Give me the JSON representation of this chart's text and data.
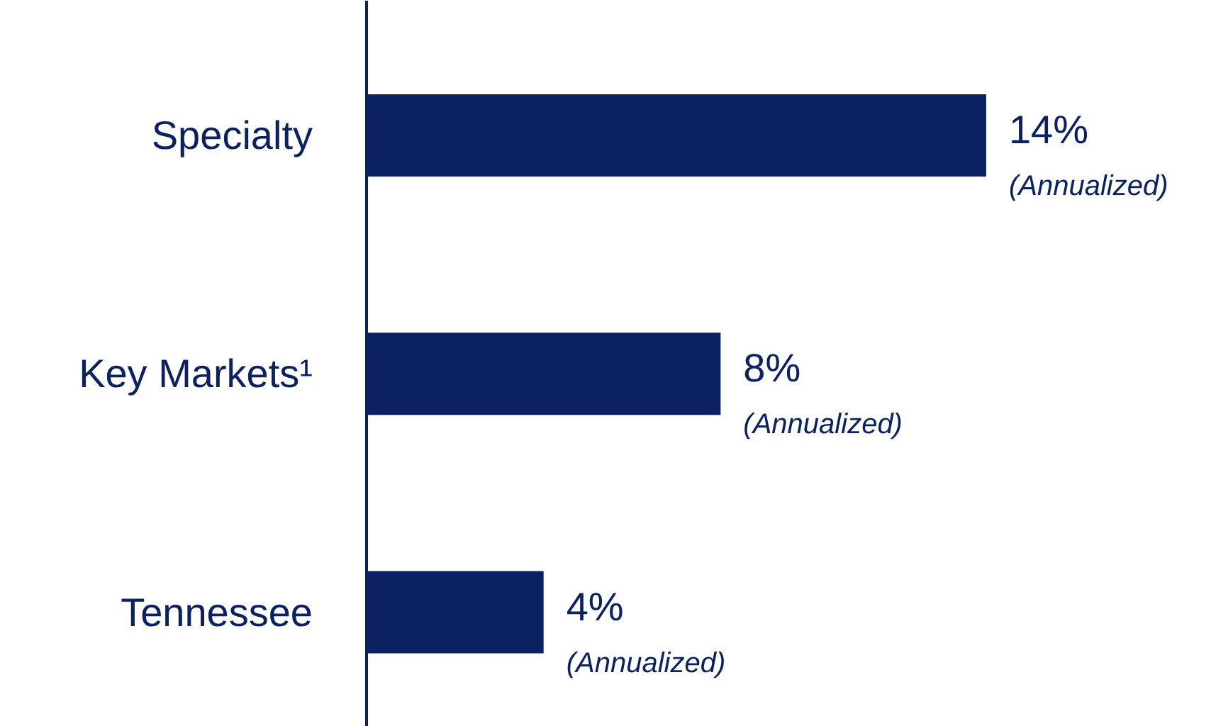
{
  "chart_data": {
    "type": "bar",
    "orientation": "horizontal",
    "categories": [
      "Specialty",
      "Key Markets¹",
      "Tennessee"
    ],
    "values": [
      14,
      8,
      4
    ],
    "color": "#0b2161",
    "value_labels": [
      "14%",
      "8%",
      "4%"
    ],
    "annotations": [
      {
        "text": "(Annualized)",
        "x": 14,
        "y": "Specialty"
      },
      {
        "text": "(Annualized)",
        "x": 8,
        "y": "Key Markets¹"
      },
      {
        "text": "(Annualized)",
        "x": 4,
        "y": "Tennessee"
      }
    ],
    "grid": false
  }
}
